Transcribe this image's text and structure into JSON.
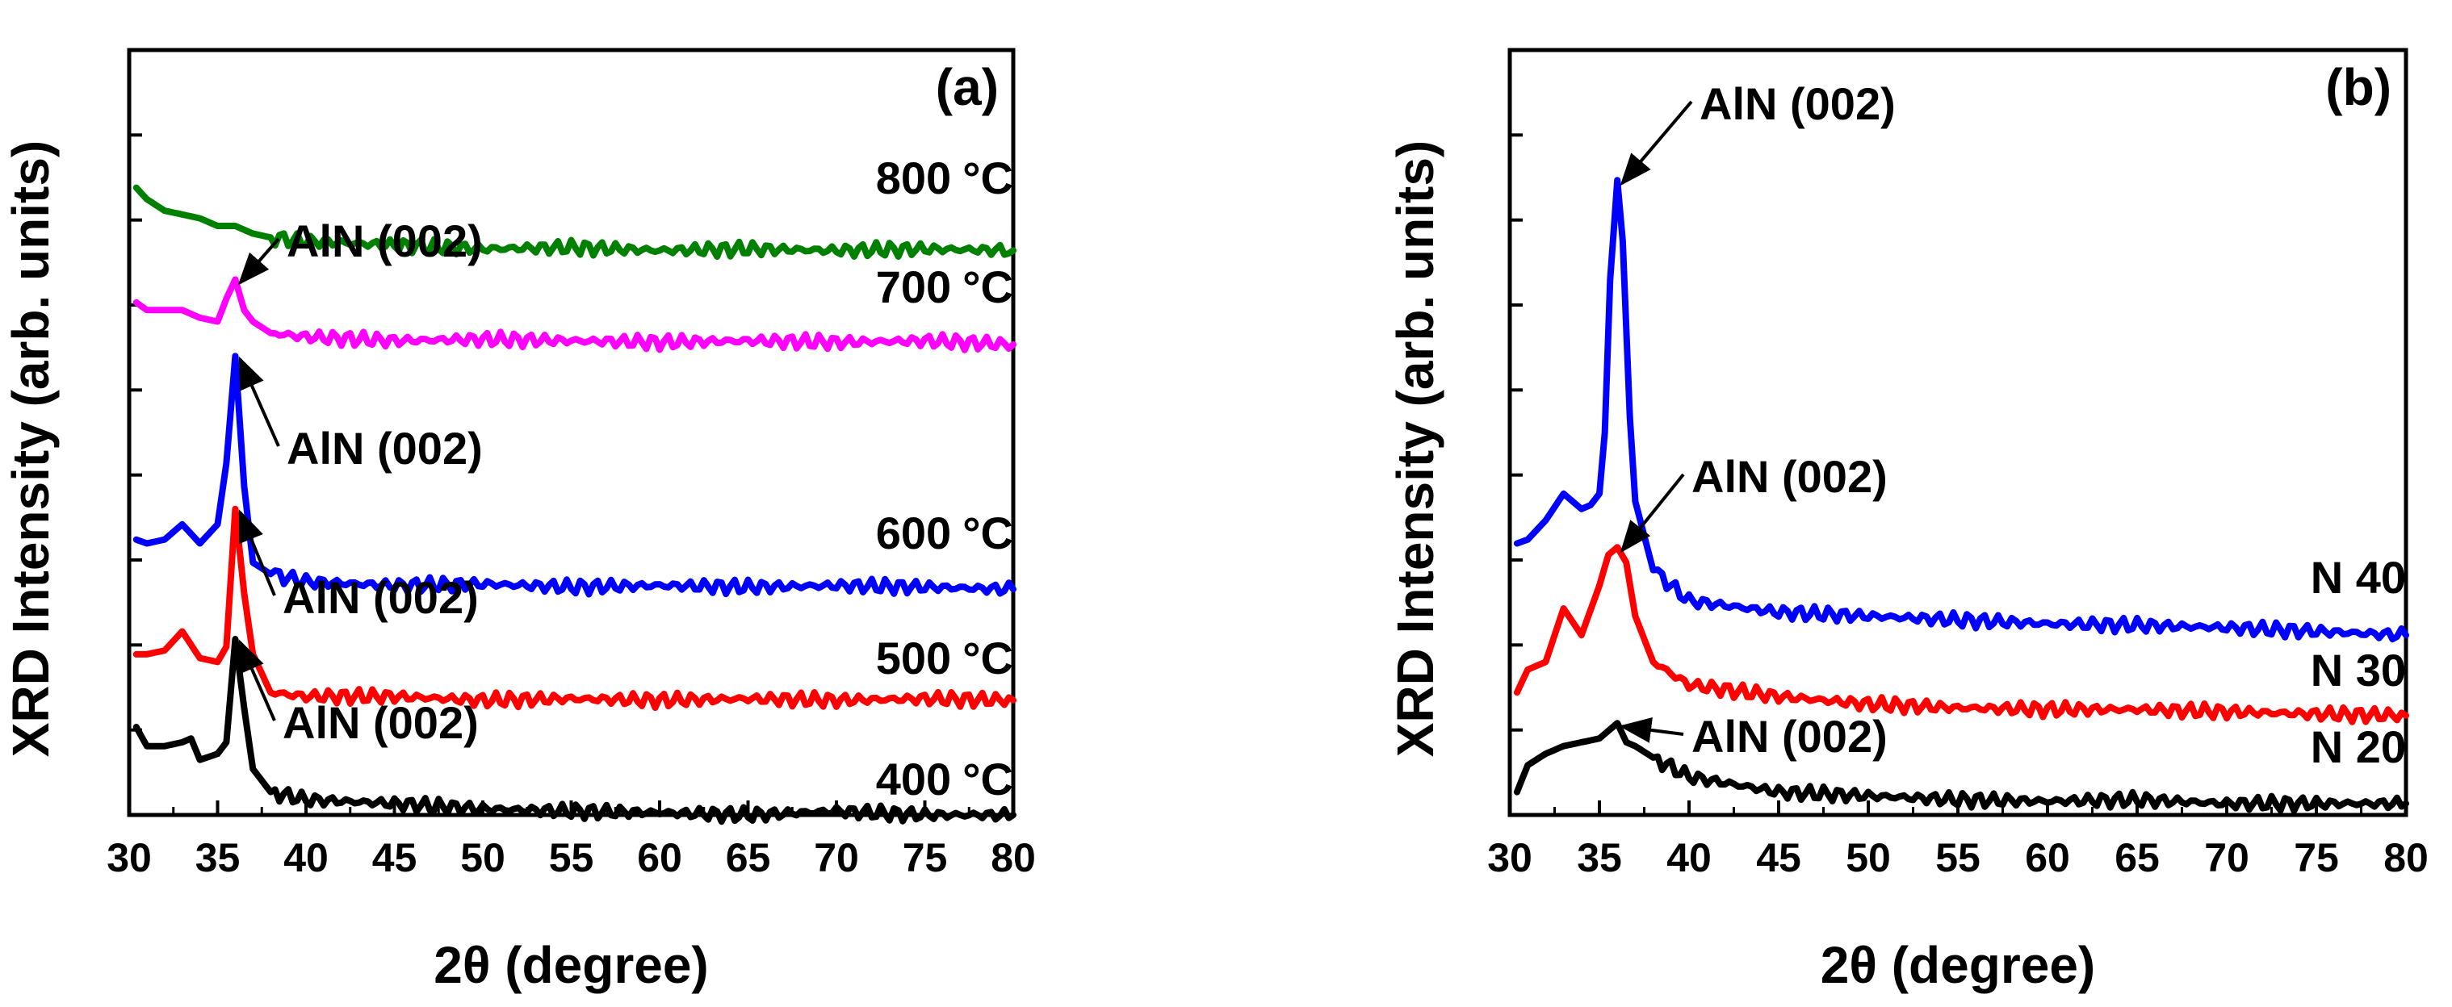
{
  "chart_data": [
    {
      "type": "line",
      "panel_label": "(a)",
      "xlabel": "2θ (degree)",
      "ylabel": "XRD Intensity (arb. units)",
      "xlim": [
        30,
        80
      ],
      "ylim": [
        0,
        10
      ],
      "x_ticks": [
        "30",
        "35",
        "40",
        "45",
        "50",
        "55",
        "60",
        "65",
        "70",
        "75",
        "80"
      ],
      "series": [
        {
          "name": "400 °C",
          "label_num": "400",
          "label_unit": "°C",
          "color": "#000000",
          "points": [
            [
              30.4,
              1.15
            ],
            [
              31,
              0.9
            ],
            [
              32,
              0.9
            ],
            [
              33,
              0.95
            ],
            [
              33.5,
              1.0
            ],
            [
              34,
              0.72
            ],
            [
              35,
              0.8
            ],
            [
              35.5,
              0.95
            ],
            [
              36,
              2.3
            ],
            [
              36.5,
              1.4
            ],
            [
              37,
              0.6
            ],
            [
              38,
              0.3
            ],
            [
              40,
              0.2
            ],
            [
              45,
              0.15
            ],
            [
              50,
              0.08
            ],
            [
              55,
              0.05
            ],
            [
              60,
              0.03
            ],
            [
              65,
              0.0
            ],
            [
              70,
              0.05
            ],
            [
              75,
              0.0
            ],
            [
              80,
              0.0
            ]
          ]
        },
        {
          "name": "500 °C",
          "label_num": "500",
          "label_unit": "°C",
          "color": "#ff0000",
          "points": [
            [
              30.4,
              2.1
            ],
            [
              31,
              2.1
            ],
            [
              32,
              2.15
            ],
            [
              33,
              2.4
            ],
            [
              34,
              2.05
            ],
            [
              35,
              2.0
            ],
            [
              35.5,
              2.2
            ],
            [
              36,
              4.0
            ],
            [
              36.5,
              2.9
            ],
            [
              37,
              2.1
            ],
            [
              38,
              1.6
            ],
            [
              40,
              1.55
            ],
            [
              45,
              1.55
            ],
            [
              50,
              1.5
            ],
            [
              55,
              1.52
            ],
            [
              60,
              1.5
            ],
            [
              65,
              1.52
            ],
            [
              70,
              1.5
            ],
            [
              75,
              1.52
            ],
            [
              80,
              1.5
            ]
          ]
        },
        {
          "name": "600 °C",
          "label_num": "600",
          "label_unit": "°C",
          "color": "#0000ff",
          "points": [
            [
              30.4,
              3.6
            ],
            [
              31,
              3.55
            ],
            [
              32,
              3.6
            ],
            [
              33,
              3.8
            ],
            [
              34,
              3.55
            ],
            [
              35,
              3.8
            ],
            [
              35.5,
              4.6
            ],
            [
              36,
              6.0
            ],
            [
              36.5,
              4.3
            ],
            [
              37,
              3.3
            ],
            [
              38,
              3.15
            ],
            [
              40,
              3.05
            ],
            [
              45,
              3.0
            ],
            [
              50,
              3.02
            ],
            [
              55,
              2.98
            ],
            [
              60,
              3.0
            ],
            [
              65,
              2.98
            ],
            [
              70,
              3.0
            ],
            [
              75,
              2.98
            ],
            [
              80,
              2.95
            ]
          ]
        },
        {
          "name": "700 °C",
          "label_num": "700",
          "label_unit": "°C",
          "color": "#ff00ff",
          "points": [
            [
              30.4,
              6.7
            ],
            [
              31,
              6.6
            ],
            [
              32,
              6.6
            ],
            [
              33,
              6.6
            ],
            [
              34,
              6.5
            ],
            [
              35,
              6.45
            ],
            [
              35.5,
              6.75
            ],
            [
              36,
              7.0
            ],
            [
              36.5,
              6.6
            ],
            [
              37,
              6.45
            ],
            [
              38,
              6.3
            ],
            [
              40,
              6.25
            ],
            [
              45,
              6.2
            ],
            [
              50,
              6.22
            ],
            [
              55,
              6.2
            ],
            [
              60,
              6.18
            ],
            [
              65,
              6.2
            ],
            [
              70,
              6.18
            ],
            [
              75,
              6.2
            ],
            [
              80,
              6.15
            ]
          ]
        },
        {
          "name": "800 °C",
          "label_num": "800",
          "label_unit": "°C",
          "color": "#008000",
          "points": [
            [
              30.4,
              8.2
            ],
            [
              31,
              8.05
            ],
            [
              32,
              7.9
            ],
            [
              33,
              7.85
            ],
            [
              34,
              7.8
            ],
            [
              35,
              7.7
            ],
            [
              36,
              7.7
            ],
            [
              37,
              7.6
            ],
            [
              38,
              7.55
            ],
            [
              40,
              7.5
            ],
            [
              45,
              7.45
            ],
            [
              50,
              7.4
            ],
            [
              55,
              7.42
            ],
            [
              60,
              7.38
            ],
            [
              65,
              7.4
            ],
            [
              70,
              7.38
            ],
            [
              75,
              7.4
            ],
            [
              80,
              7.38
            ]
          ]
        }
      ],
      "annotations": [
        {
          "text": "AlN (002)",
          "x": 36.0,
          "y": 7.0
        },
        {
          "text": "AlN (002)",
          "x": 36.0,
          "y": 6.0
        },
        {
          "text": "AlN (002)",
          "x": 36.0,
          "y": 4.0
        },
        {
          "text": "AlN (002)",
          "x": 36.0,
          "y": 2.3
        }
      ]
    },
    {
      "type": "line",
      "panel_label": "(b)",
      "xlabel": "2θ (degree)",
      "ylabel": "XRD Intensity (arb. units)",
      "xlim": [
        30,
        80
      ],
      "ylim": [
        0,
        10
      ],
      "x_ticks": [
        "30",
        "35",
        "40",
        "45",
        "50",
        "55",
        "60",
        "65",
        "70",
        "75",
        "80"
      ],
      "series": [
        {
          "name": "N 20",
          "label_num": "N 20",
          "label_unit": "",
          "color": "#000000",
          "points": [
            [
              30.4,
              0.3
            ],
            [
              31,
              0.65
            ],
            [
              32,
              0.8
            ],
            [
              33,
              0.9
            ],
            [
              34,
              0.95
            ],
            [
              35,
              1.0
            ],
            [
              35.5,
              1.1
            ],
            [
              36,
              1.2
            ],
            [
              36.5,
              0.95
            ],
            [
              37,
              0.9
            ],
            [
              38,
              0.75
            ],
            [
              40,
              0.5
            ],
            [
              45,
              0.3
            ],
            [
              50,
              0.25
            ],
            [
              55,
              0.2
            ],
            [
              60,
              0.18
            ],
            [
              65,
              0.2
            ],
            [
              70,
              0.15
            ],
            [
              75,
              0.15
            ],
            [
              80,
              0.15
            ]
          ]
        },
        {
          "name": "N 30",
          "label_num": "N 30",
          "label_unit": "",
          "color": "#ff0000",
          "points": [
            [
              30.4,
              1.6
            ],
            [
              31,
              1.9
            ],
            [
              32,
              2.0
            ],
            [
              33,
              2.7
            ],
            [
              34,
              2.35
            ],
            [
              35,
              3.0
            ],
            [
              35.5,
              3.4
            ],
            [
              36,
              3.5
            ],
            [
              36.5,
              3.3
            ],
            [
              37,
              2.6
            ],
            [
              38,
              2.0
            ],
            [
              40,
              1.7
            ],
            [
              45,
              1.55
            ],
            [
              50,
              1.45
            ],
            [
              55,
              1.4
            ],
            [
              60,
              1.38
            ],
            [
              65,
              1.38
            ],
            [
              70,
              1.35
            ],
            [
              75,
              1.32
            ],
            [
              80,
              1.3
            ]
          ]
        },
        {
          "name": "N 40",
          "label_num": "N 40",
          "label_unit": "",
          "color": "#0000ff",
          "points": [
            [
              30.4,
              3.55
            ],
            [
              31,
              3.6
            ],
            [
              32,
              3.85
            ],
            [
              33,
              4.2
            ],
            [
              34,
              4.0
            ],
            [
              34.5,
              4.05
            ],
            [
              35,
              4.2
            ],
            [
              35.3,
              5.0
            ],
            [
              35.6,
              7.0
            ],
            [
              36,
              8.3
            ],
            [
              36.3,
              7.5
            ],
            [
              36.7,
              5.2
            ],
            [
              37,
              4.1
            ],
            [
              38,
              3.2
            ],
            [
              40,
              2.8
            ],
            [
              45,
              2.65
            ],
            [
              50,
              2.6
            ],
            [
              55,
              2.55
            ],
            [
              60,
              2.5
            ],
            [
              65,
              2.48
            ],
            [
              70,
              2.45
            ],
            [
              75,
              2.4
            ],
            [
              80,
              2.35
            ]
          ]
        }
      ],
      "annotations": [
        {
          "text": "AlN (002)",
          "x": 36.0,
          "y": 8.3
        },
        {
          "text": "AlN (002)",
          "x": 36.0,
          "y": 3.5
        },
        {
          "text": "AlN (002)",
          "x": 36.0,
          "y": 1.2
        }
      ]
    }
  ]
}
